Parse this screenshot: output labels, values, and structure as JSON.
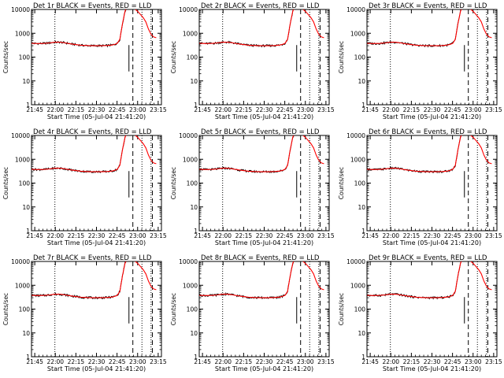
{
  "chart_data": [
    {
      "type": "line",
      "title": "Det 1r BLACK = Events, RED = LLD",
      "xlabel": "Start Time (05-Jul-04 21:41:20)",
      "ylabel": "Counts/sec",
      "x_ticks": [
        "21:45",
        "22:00",
        "22:15",
        "22:30",
        "22:45",
        "23:00",
        "23:15"
      ],
      "y_ticks": [
        "1",
        "10",
        "100",
        "1000",
        "10000"
      ],
      "ylim": [
        1,
        10000
      ],
      "y_scale": "log",
      "series": [
        {
          "x": [
            0,
            5,
            10,
            14,
            18,
            22,
            26,
            30,
            34,
            38,
            42,
            46,
            50,
            54,
            58,
            62,
            64,
            66,
            68,
            70,
            72,
            74,
            76,
            78,
            80,
            82,
            84,
            86,
            88,
            90,
            92,
            94,
            96
          ],
          "values": [
            380,
            370,
            375,
            395,
            420,
            420,
            395,
            360,
            335,
            315,
            305,
            300,
            300,
            300,
            305,
            320,
            340,
            380,
            560,
            2500,
            8500,
            14000,
            15000,
            14500,
            10000,
            8000,
            6000,
            4500,
            3000,
            1500,
            900,
            700,
            650
          ]
        }
      ],
      "black_noise": true,
      "vlines_dotted": [
        18,
        85,
        92
      ],
      "vlines_dashed": [
        78,
        93
      ],
      "vline_solid": 75
    },
    {
      "type": "line",
      "title": "Det 2r BLACK = Events, RED = LLD",
      "xlabel": "Start Time (05-Jul-04 21:41:20)",
      "ylabel": "Counts/sec",
      "x_ticks": [
        "21:45",
        "22:00",
        "22:15",
        "22:30",
        "22:45",
        "23:00",
        "23:15"
      ],
      "y_ticks": [
        "1",
        "10",
        "100",
        "1000",
        "10000"
      ],
      "ylim": [
        1,
        10000
      ],
      "y_scale": "log",
      "series": [
        {
          "x": [
            0,
            5,
            10,
            14,
            18,
            22,
            26,
            30,
            34,
            38,
            42,
            46,
            50,
            54,
            58,
            62,
            64,
            66,
            68,
            70,
            72,
            74,
            76,
            78,
            80,
            82,
            84,
            86,
            88,
            90,
            92,
            94,
            96
          ],
          "values": [
            380,
            370,
            375,
            395,
            420,
            420,
            395,
            360,
            335,
            315,
            305,
            300,
            300,
            300,
            305,
            320,
            340,
            380,
            560,
            2500,
            8500,
            14000,
            15000,
            14500,
            10000,
            8000,
            6000,
            4500,
            3000,
            1500,
            900,
            700,
            650
          ]
        }
      ],
      "black_noise": true,
      "vlines_dotted": [
        18,
        85,
        92
      ],
      "vlines_dashed": [
        78,
        93
      ],
      "vline_solid": 75
    },
    {
      "type": "line",
      "title": "Det 3r BLACK = Events, RED = LLD",
      "xlabel": "Start Time (05-Jul-04 21:41:20)",
      "ylabel": "Counts/sec",
      "x_ticks": [
        "21:45",
        "22:00",
        "22:15",
        "22:30",
        "22:45",
        "23:00",
        "23:15"
      ],
      "y_ticks": [
        "1",
        "10",
        "100",
        "1000",
        "10000"
      ],
      "ylim": [
        1,
        10000
      ],
      "y_scale": "log",
      "series": [
        {
          "x": [
            0,
            5,
            10,
            14,
            18,
            22,
            26,
            30,
            34,
            38,
            42,
            46,
            50,
            54,
            58,
            62,
            64,
            66,
            68,
            70,
            72,
            74,
            76,
            78,
            80,
            82,
            84,
            86,
            88,
            90,
            92,
            94,
            96
          ],
          "values": [
            380,
            370,
            375,
            395,
            420,
            420,
            395,
            360,
            335,
            315,
            305,
            300,
            300,
            300,
            305,
            320,
            340,
            380,
            560,
            2500,
            8500,
            14000,
            15000,
            14500,
            10000,
            8000,
            6000,
            4500,
            3000,
            1500,
            900,
            700,
            650
          ]
        }
      ],
      "black_noise": true,
      "vlines_dotted": [
        18,
        85,
        92
      ],
      "vlines_dashed": [
        78,
        93
      ],
      "vline_solid": 75
    },
    {
      "type": "line",
      "title": "Det 4r BLACK = Events, RED = LLD",
      "xlabel": "Start Time (05-Jul-04 21:41:20)",
      "ylabel": "Counts/sec",
      "x_ticks": [
        "21:45",
        "22:00",
        "22:15",
        "22:30",
        "22:45",
        "23:00",
        "23:15"
      ],
      "y_ticks": [
        "1",
        "10",
        "100",
        "1000",
        "10000"
      ],
      "ylim": [
        1,
        10000
      ],
      "y_scale": "log",
      "series": [
        {
          "x": [
            0,
            5,
            10,
            14,
            18,
            22,
            26,
            30,
            34,
            38,
            42,
            46,
            50,
            54,
            58,
            62,
            64,
            66,
            68,
            70,
            72,
            74,
            76,
            78,
            80,
            82,
            84,
            86,
            88,
            90,
            92,
            94,
            96
          ],
          "values": [
            380,
            370,
            375,
            395,
            420,
            420,
            395,
            360,
            335,
            315,
            305,
            300,
            300,
            300,
            305,
            320,
            340,
            380,
            560,
            2500,
            8500,
            14000,
            15000,
            14500,
            10000,
            8000,
            6000,
            4500,
            3000,
            1500,
            900,
            700,
            650
          ]
        }
      ],
      "black_noise": true,
      "vlines_dotted": [
        18,
        85,
        92
      ],
      "vlines_dashed": [
        78,
        93
      ],
      "vline_solid": 75
    },
    {
      "type": "line",
      "title": "Det 5r BLACK = Events, RED = LLD",
      "xlabel": "Start Time (05-Jul-04 21:41:20)",
      "ylabel": "Counts/sec",
      "x_ticks": [
        "21:45",
        "22:00",
        "22:15",
        "22:30",
        "22:45",
        "23:00",
        "23:15"
      ],
      "y_ticks": [
        "1",
        "10",
        "100",
        "1000",
        "10000"
      ],
      "ylim": [
        1,
        10000
      ],
      "y_scale": "log",
      "series": [
        {
          "x": [
            0,
            5,
            10,
            14,
            18,
            22,
            26,
            30,
            34,
            38,
            42,
            46,
            50,
            54,
            58,
            62,
            64,
            66,
            68,
            70,
            72,
            74,
            76,
            78,
            80,
            82,
            84,
            86,
            88,
            90,
            92,
            94,
            96
          ],
          "values": [
            380,
            370,
            375,
            395,
            420,
            420,
            395,
            360,
            335,
            315,
            305,
            300,
            300,
            300,
            305,
            320,
            340,
            380,
            560,
            2500,
            8500,
            14000,
            15000,
            14500,
            10000,
            8000,
            6000,
            4500,
            3000,
            1500,
            900,
            700,
            650
          ]
        }
      ],
      "black_noise": true,
      "vlines_dotted": [
        18,
        85,
        92
      ],
      "vlines_dashed": [
        78,
        93
      ],
      "vline_solid": 75
    },
    {
      "type": "line",
      "title": "Det 6r BLACK = Events, RED = LLD",
      "xlabel": "Start Time (05-Jul-04 21:41:20)",
      "ylabel": "Counts/sec",
      "x_ticks": [
        "21:45",
        "22:00",
        "22:15",
        "22:30",
        "22:45",
        "23:00",
        "23:15"
      ],
      "y_ticks": [
        "1",
        "10",
        "100",
        "1000",
        "10000"
      ],
      "ylim": [
        1,
        10000
      ],
      "y_scale": "log",
      "series": [
        {
          "x": [
            0,
            5,
            10,
            14,
            18,
            22,
            26,
            30,
            34,
            38,
            42,
            46,
            50,
            54,
            58,
            62,
            64,
            66,
            68,
            70,
            72,
            74,
            76,
            78,
            80,
            82,
            84,
            86,
            88,
            90,
            92,
            94,
            96
          ],
          "values": [
            380,
            370,
            375,
            395,
            420,
            420,
            395,
            360,
            335,
            315,
            305,
            300,
            300,
            300,
            305,
            320,
            340,
            380,
            560,
            2500,
            8500,
            14000,
            15000,
            14500,
            10000,
            8000,
            6000,
            4500,
            3000,
            1500,
            900,
            700,
            650
          ]
        }
      ],
      "black_noise": true,
      "vlines_dotted": [
        18,
        85,
        92
      ],
      "vlines_dashed": [
        78,
        93
      ],
      "vline_solid": 75
    },
    {
      "type": "line",
      "title": "Det 7r BLACK = Events, RED = LLD",
      "xlabel": "Start Time (05-Jul-04 21:41:20)",
      "ylabel": "Counts/sec",
      "x_ticks": [
        "21:45",
        "22:00",
        "22:15",
        "22:30",
        "22:45",
        "23:00",
        "23:15"
      ],
      "y_ticks": [
        "1",
        "10",
        "100",
        "1000",
        "10000"
      ],
      "ylim": [
        1,
        10000
      ],
      "y_scale": "log",
      "series": [
        {
          "x": [
            0,
            5,
            10,
            14,
            18,
            22,
            26,
            30,
            34,
            38,
            42,
            46,
            50,
            54,
            58,
            62,
            64,
            66,
            68,
            70,
            72,
            74,
            76,
            78,
            80,
            82,
            84,
            86,
            88,
            90,
            92,
            94,
            96
          ],
          "values": [
            380,
            370,
            375,
            395,
            420,
            420,
            395,
            360,
            335,
            315,
            305,
            300,
            300,
            300,
            305,
            320,
            340,
            380,
            560,
            2500,
            8500,
            14000,
            15000,
            14500,
            10000,
            8000,
            6000,
            4500,
            3000,
            1500,
            900,
            700,
            650
          ]
        }
      ],
      "black_noise": true,
      "vlines_dotted": [
        18,
        85,
        92
      ],
      "vlines_dashed": [
        78,
        93
      ],
      "vline_solid": 75
    },
    {
      "type": "line",
      "title": "Det 8r BLACK = Events, RED = LLD",
      "xlabel": "Start Time (05-Jul-04 21:41:20)",
      "ylabel": "Counts/sec",
      "x_ticks": [
        "21:45",
        "22:00",
        "22:15",
        "22:30",
        "22:45",
        "23:00",
        "23:15"
      ],
      "y_ticks": [
        "1",
        "10",
        "100",
        "1000",
        "10000"
      ],
      "ylim": [
        1,
        10000
      ],
      "y_scale": "log",
      "series": [
        {
          "x": [
            0,
            5,
            10,
            14,
            18,
            22,
            26,
            30,
            34,
            38,
            42,
            46,
            50,
            54,
            58,
            62,
            64,
            66,
            68,
            70,
            72,
            74,
            76,
            78,
            80,
            82,
            84,
            86,
            88,
            90,
            92,
            94,
            96
          ],
          "values": [
            380,
            370,
            375,
            395,
            420,
            420,
            395,
            360,
            335,
            315,
            305,
            300,
            300,
            300,
            305,
            320,
            340,
            380,
            560,
            2500,
            8500,
            14000,
            15000,
            14500,
            10000,
            8000,
            6000,
            4500,
            3000,
            1500,
            900,
            700,
            650
          ]
        }
      ],
      "black_noise": true,
      "vlines_dotted": [
        18,
        85,
        92
      ],
      "vlines_dashed": [
        78,
        93
      ],
      "vline_solid": 75
    },
    {
      "type": "line",
      "title": "Det 9r BLACK = Events, RED = LLD",
      "xlabel": "Start Time (05-Jul-04 21:41:20)",
      "ylabel": "Counts/sec",
      "x_ticks": [
        "21:45",
        "22:00",
        "22:15",
        "22:30",
        "22:45",
        "23:00",
        "23:15"
      ],
      "y_ticks": [
        "1",
        "10",
        "100",
        "1000",
        "10000"
      ],
      "ylim": [
        1,
        10000
      ],
      "y_scale": "log",
      "series": [
        {
          "x": [
            0,
            5,
            10,
            14,
            18,
            22,
            26,
            30,
            34,
            38,
            42,
            46,
            50,
            54,
            58,
            62,
            64,
            66,
            68,
            70,
            72,
            74,
            76,
            78,
            80,
            82,
            84,
            86,
            88,
            90,
            92,
            94,
            96
          ],
          "values": [
            380,
            370,
            375,
            395,
            420,
            420,
            395,
            360,
            335,
            315,
            305,
            300,
            300,
            300,
            305,
            320,
            340,
            380,
            560,
            2500,
            8500,
            14000,
            15000,
            14500,
            10000,
            8000,
            6000,
            4500,
            3000,
            1500,
            900,
            700,
            650
          ]
        }
      ],
      "black_noise": true,
      "vlines_dotted": [
        18,
        85,
        92
      ],
      "vlines_dashed": [
        78,
        93
      ],
      "vline_solid": 75
    }
  ],
  "colors": {
    "events": "#000000",
    "lld": "#ff0000",
    "background": "#ffffff"
  }
}
